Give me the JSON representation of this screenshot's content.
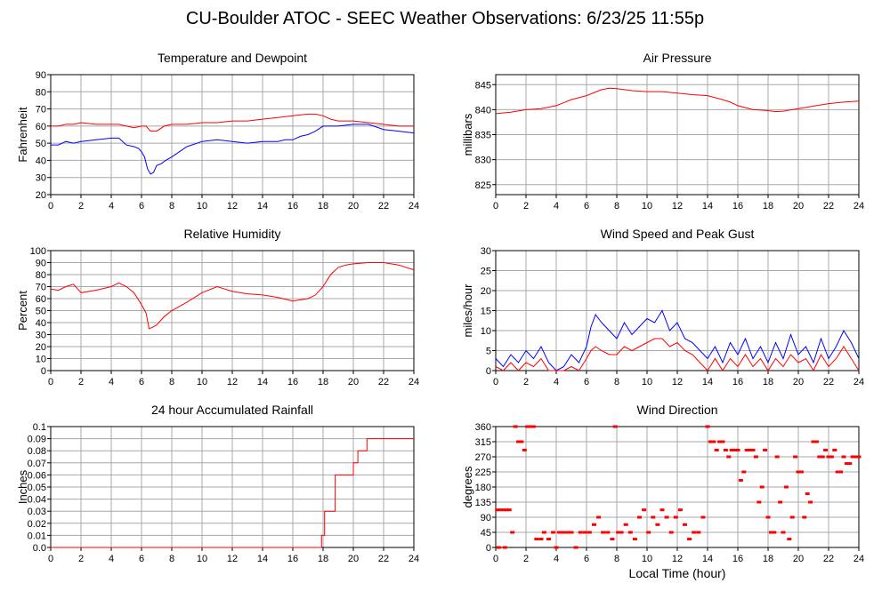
{
  "page": {
    "title": "CU-Boulder ATOC - SEEC Weather Observations: 6/23/25 11:55p"
  },
  "x_axis": {
    "ticks": [
      "0",
      "2",
      "4",
      "6",
      "8",
      "10",
      "12",
      "14",
      "16",
      "18",
      "20",
      "22",
      "24"
    ],
    "label": "Local Time (hour)",
    "range": [
      0,
      24
    ]
  },
  "chart_data": [
    {
      "id": "temp",
      "type": "line",
      "title": "Temperature and Dewpoint",
      "ylabel": "Fahrenheit",
      "ylim": [
        20,
        90
      ],
      "yticks": [
        20,
        30,
        40,
        50,
        60,
        70,
        80,
        90
      ],
      "grid": true,
      "series": [
        {
          "color": "#ff0000",
          "x": [
            0,
            0.5,
            1,
            1.5,
            2,
            3,
            4,
            4.5,
            5,
            5.5,
            6,
            6.3,
            6.6,
            7,
            7.5,
            8,
            9,
            10,
            11,
            12,
            13,
            14,
            15,
            16,
            17,
            17.5,
            18,
            18.5,
            19,
            20,
            21,
            22,
            23,
            24
          ],
          "y": [
            60,
            60,
            61,
            61,
            62,
            61,
            61,
            61,
            60,
            59,
            60,
            60,
            57,
            57,
            60,
            61,
            61,
            62,
            62,
            63,
            63,
            64,
            65,
            66,
            67,
            67,
            66,
            64,
            63,
            63,
            62,
            61,
            60,
            60
          ]
        },
        {
          "color": "#0000ff",
          "x": [
            0,
            0.5,
            1,
            1.5,
            2,
            3,
            4,
            4.5,
            5,
            5.5,
            5.8,
            6,
            6.2,
            6.4,
            6.6,
            6.8,
            7,
            7.3,
            7.6,
            8,
            8.5,
            9,
            10,
            11,
            12,
            13,
            14,
            15,
            15.5,
            16,
            16.5,
            17,
            17.5,
            18,
            18.5,
            19,
            20,
            21,
            22,
            23,
            24
          ],
          "y": [
            49,
            49,
            51,
            50,
            51,
            52,
            53,
            53,
            49,
            48,
            47,
            45,
            42,
            35,
            32,
            33,
            37,
            38,
            40,
            42,
            45,
            48,
            51,
            52,
            51,
            50,
            51,
            51,
            52,
            52,
            54,
            55,
            57,
            60,
            60,
            60,
            61,
            61,
            58,
            57,
            56
          ]
        }
      ]
    },
    {
      "id": "press",
      "type": "line",
      "title": "Air Pressure",
      "ylabel": "millibars",
      "ylim": [
        823,
        847
      ],
      "yticks": [
        825,
        830,
        835,
        840,
        845
      ],
      "grid": true,
      "series": [
        {
          "color": "#ff0000",
          "x": [
            0,
            1,
            2,
            3,
            4,
            5,
            6,
            7,
            7.5,
            8,
            9,
            10,
            11,
            12,
            13,
            14,
            15,
            15.5,
            16,
            16.5,
            17,
            17.5,
            18,
            18.5,
            19,
            20,
            21,
            22,
            23,
            24
          ],
          "y": [
            839.2,
            839.5,
            840,
            840.2,
            840.8,
            842,
            842.8,
            844,
            844.3,
            844.2,
            843.8,
            843.6,
            843.6,
            843.3,
            843,
            842.8,
            842,
            841.5,
            840.8,
            840.4,
            840,
            839.9,
            839.8,
            839.6,
            839.7,
            840.2,
            840.7,
            841.2,
            841.5,
            841.7
          ]
        }
      ]
    },
    {
      "id": "rh",
      "type": "line",
      "title": "Relative Humidity",
      "ylabel": "Percent",
      "ylim": [
        0,
        100
      ],
      "yticks": [
        0,
        10,
        20,
        30,
        40,
        50,
        60,
        70,
        80,
        90,
        100
      ],
      "grid": true,
      "series": [
        {
          "color": "#ff0000",
          "x": [
            0,
            0.5,
            1,
            1.5,
            2,
            3,
            4,
            4.5,
            5,
            5.5,
            6,
            6.3,
            6.5,
            6.7,
            7,
            7.5,
            8,
            9,
            10,
            11,
            12,
            13,
            14,
            15,
            16,
            17,
            17.5,
            18,
            18.5,
            19,
            19.5,
            20,
            21,
            22,
            23,
            24
          ],
          "y": [
            68,
            67,
            70,
            72,
            65,
            67,
            70,
            73,
            70,
            65,
            55,
            48,
            35,
            36,
            38,
            45,
            50,
            57,
            65,
            70,
            66,
            64,
            63,
            61,
            58,
            60,
            63,
            70,
            80,
            86,
            88,
            89,
            90,
            90,
            88,
            84
          ]
        }
      ]
    },
    {
      "id": "wind",
      "type": "line",
      "title": "Wind Speed and Peak Gust",
      "ylabel": "miles/hour",
      "ylim": [
        0,
        30
      ],
      "yticks": [
        0,
        5,
        10,
        15,
        20,
        25,
        30
      ],
      "grid": true,
      "series": [
        {
          "color": "#0000ff",
          "x": [
            0,
            0.5,
            1,
            1.5,
            2,
            2.5,
            3,
            3.5,
            4,
            4.5,
            5,
            5.5,
            6,
            6.3,
            6.6,
            7,
            7.5,
            8,
            8.5,
            9,
            9.5,
            10,
            10.5,
            11,
            11.5,
            12,
            12.5,
            13,
            13.5,
            14,
            14.5,
            15,
            15.5,
            16,
            16.5,
            17,
            17.5,
            18,
            18.5,
            19,
            19.5,
            20,
            20.5,
            21,
            21.5,
            22,
            22.5,
            23,
            23.5,
            24
          ],
          "y": [
            3,
            1,
            4,
            2,
            5,
            3,
            6,
            2,
            0,
            1,
            4,
            2,
            6,
            11,
            14,
            12,
            10,
            8,
            12,
            9,
            11,
            13,
            12,
            15,
            10,
            12,
            8,
            7,
            5,
            3,
            6,
            2,
            7,
            4,
            8,
            3,
            6,
            2,
            7,
            3,
            9,
            4,
            6,
            2,
            8,
            3,
            6,
            10,
            7,
            3
          ]
        },
        {
          "color": "#ff0000",
          "x": [
            0,
            0.5,
            1,
            1.5,
            2,
            2.5,
            3,
            3.5,
            4,
            4.5,
            5,
            5.5,
            6,
            6.3,
            6.6,
            7,
            7.5,
            8,
            8.5,
            9,
            9.5,
            10,
            10.5,
            11,
            11.5,
            12,
            12.5,
            13,
            13.5,
            14,
            14.5,
            15,
            15.5,
            16,
            16.5,
            17,
            17.5,
            18,
            18.5,
            19,
            19.5,
            20,
            20.5,
            21,
            21.5,
            22,
            22.5,
            23,
            23.5,
            24
          ],
          "y": [
            1,
            0,
            2,
            0,
            2,
            1,
            3,
            0,
            0,
            0,
            1,
            0,
            3,
            5,
            6,
            5,
            4,
            4,
            6,
            5,
            6,
            7,
            8,
            8,
            6,
            7,
            5,
            4,
            2,
            0,
            3,
            0,
            3,
            1,
            4,
            1,
            3,
            0,
            3,
            1,
            4,
            2,
            3,
            0,
            4,
            1,
            3,
            6,
            3,
            0
          ]
        }
      ]
    },
    {
      "id": "rain",
      "type": "line",
      "title": "24 hour Accumulated Rainfall",
      "ylabel": "Inches",
      "ylim": [
        0,
        0.1
      ],
      "yticks": [
        "0.0",
        "0.01",
        "0.02",
        "0.03",
        "0.04",
        "0.05",
        "0.06",
        "0.07",
        "0.08",
        "0.09",
        "0.1"
      ],
      "grid": true,
      "series": [
        {
          "color": "#ff0000",
          "x": [
            0,
            17.9,
            17.9,
            18.1,
            18.1,
            18.8,
            18.8,
            19.3,
            19.3,
            20.0,
            20.0,
            20.3,
            20.3,
            20.6,
            20.6,
            20.9,
            20.9,
            21.1,
            21.1,
            24
          ],
          "y": [
            0,
            0,
            0.01,
            0.01,
            0.03,
            0.03,
            0.06,
            0.06,
            0.06,
            0.06,
            0.07,
            0.07,
            0.08,
            0.08,
            0.08,
            0.08,
            0.09,
            0.09,
            0.09,
            0.09
          ]
        }
      ]
    },
    {
      "id": "dir",
      "type": "scatter",
      "title": "Wind Direction",
      "ylabel": "degrees",
      "ylim": [
        0,
        360
      ],
      "yticks": [
        0,
        45,
        90,
        135,
        180,
        225,
        270,
        315,
        360
      ],
      "grid": true,
      "series": [
        {
          "color": "#ff0000",
          "x": [
            0.1,
            0.3,
            0.5,
            0.7,
            0.9,
            0.2,
            0.6,
            1.1,
            1.3,
            1.5,
            1.7,
            1.9,
            2.1,
            2.3,
            2.5,
            2.7,
            3.0,
            3.2,
            3.5,
            3.8,
            4.0,
            4.2,
            4.5,
            4.8,
            5.0,
            5.3,
            5.6,
            5.9,
            6.2,
            6.5,
            6.8,
            7.1,
            7.4,
            7.7,
            7.9,
            8.1,
            8.3,
            8.6,
            8.9,
            9.2,
            9.5,
            9.8,
            10.1,
            10.4,
            10.7,
            11.0,
            11.3,
            11.6,
            11.9,
            12.2,
            12.5,
            12.8,
            13.1,
            13.4,
            13.7,
            14.0,
            14.2,
            14.4,
            14.6,
            14.8,
            15.0,
            15.2,
            15.4,
            15.6,
            15.8,
            16.0,
            16.2,
            16.4,
            16.6,
            16.8,
            17.0,
            17.2,
            17.4,
            17.6,
            17.8,
            18.0,
            18.2,
            18.4,
            18.6,
            18.8,
            19.0,
            19.2,
            19.4,
            19.6,
            19.8,
            20.0,
            20.2,
            20.4,
            20.6,
            20.8,
            21.0,
            21.2,
            21.4,
            21.6,
            21.8,
            22.0,
            22.2,
            22.4,
            22.6,
            22.8,
            23.0,
            23.2,
            23.4,
            23.6,
            23.8,
            24.0
          ],
          "y": [
            112,
            112,
            112,
            112,
            112,
            0,
            0,
            45,
            360,
            315,
            315,
            290,
            360,
            360,
            360,
            25,
            25,
            45,
            25,
            45,
            0,
            45,
            45,
            45,
            45,
            0,
            45,
            45,
            45,
            68,
            90,
            45,
            45,
            25,
            360,
            45,
            45,
            68,
            45,
            25,
            90,
            112,
            45,
            90,
            68,
            112,
            90,
            45,
            90,
            112,
            68,
            25,
            45,
            45,
            90,
            360,
            315,
            315,
            290,
            315,
            315,
            290,
            270,
            290,
            290,
            290,
            200,
            225,
            290,
            290,
            290,
            270,
            135,
            180,
            290,
            90,
            45,
            45,
            270,
            135,
            45,
            180,
            25,
            90,
            270,
            225,
            225,
            90,
            160,
            135,
            315,
            315,
            270,
            270,
            290,
            270,
            270,
            290,
            225,
            225,
            270,
            250,
            250,
            270,
            270,
            270
          ]
        }
      ]
    }
  ]
}
